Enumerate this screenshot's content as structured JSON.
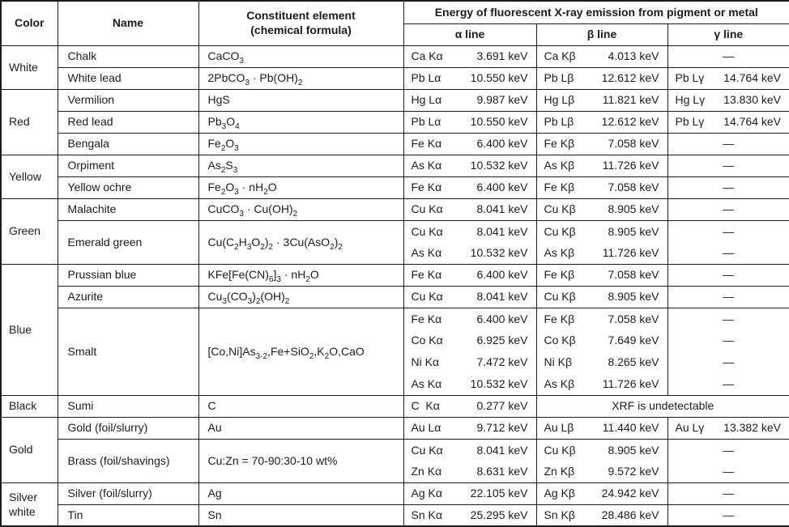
{
  "colors": {
    "ink": "#1c1c1c",
    "background": "#ffffff"
  },
  "dash": "—",
  "xrf_note": "XRF is undetectable",
  "headers": {
    "color": "Color",
    "name": "Name",
    "constituent_line1": "Constituent element",
    "constituent_line2": "(chemical formula)",
    "energy": "Energy of fluorescent X-ray emission from pigment or metal",
    "alpha": "α line",
    "beta": "β line",
    "gamma": "γ line"
  },
  "groups": [
    {
      "color": "White",
      "pigments": [
        {
          "name": "Chalk",
          "formula": "CaCO_3_",
          "lines": [
            {
              "a": {
                "l": "Ca Kα",
                "v": "3.691 keV"
              },
              "b": {
                "l": "Ca Kβ",
                "v": "4.013 keV"
              },
              "g": null
            }
          ]
        },
        {
          "name": "White lead",
          "formula": "2PbCO_3_ · Pb(OH)_2_",
          "lines": [
            {
              "a": {
                "l": "Pb Lα",
                "v": "10.550 keV"
              },
              "b": {
                "l": "Pb Lβ",
                "v": "12.612 keV"
              },
              "g": {
                "l": "Pb Lγ",
                "v": "14.764 keV"
              }
            }
          ]
        }
      ]
    },
    {
      "color": "Red",
      "pigments": [
        {
          "name": "Vermilion",
          "formula": "HgS",
          "lines": [
            {
              "a": {
                "l": "Hg Lα",
                "v": "9.987 keV"
              },
              "b": {
                "l": "Hg Lβ",
                "v": "11.821 keV"
              },
              "g": {
                "l": "Hg Lγ",
                "v": "13.830 keV"
              }
            }
          ]
        },
        {
          "name": "Red lead",
          "formula": "Pb_3_O_4_",
          "lines": [
            {
              "a": {
                "l": "Pb Lα",
                "v": "10.550 keV"
              },
              "b": {
                "l": "Pb Lβ",
                "v": "12.612 keV"
              },
              "g": {
                "l": "Pb Lγ",
                "v": "14.764 keV"
              }
            }
          ]
        },
        {
          "name": "Bengala",
          "formula": "Fe_2_O_3_",
          "lines": [
            {
              "a": {
                "l": "Fe Kα",
                "v": "6.400 keV"
              },
              "b": {
                "l": "Fe Kβ",
                "v": "7.058 keV"
              },
              "g": null
            }
          ]
        }
      ]
    },
    {
      "color": "Yellow",
      "pigments": [
        {
          "name": "Orpiment",
          "formula": "As_2_S_3_",
          "lines": [
            {
              "a": {
                "l": "As Kα",
                "v": "10.532 keV"
              },
              "b": {
                "l": "As Kβ",
                "v": "11.726 keV"
              },
              "g": null
            }
          ]
        },
        {
          "name": "Yellow ochre",
          "formula": "Fe_2_O_3_ · nH_2_O",
          "lines": [
            {
              "a": {
                "l": "Fe Kα",
                "v": "6.400 keV"
              },
              "b": {
                "l": "Fe Kβ",
                "v": "7.058 keV"
              },
              "g": null
            }
          ]
        }
      ]
    },
    {
      "color": "Green",
      "pigments": [
        {
          "name": "Malachite",
          "formula": "CuCO_3_ · Cu(OH)_2_",
          "lines": [
            {
              "a": {
                "l": "Cu Kα",
                "v": "8.041 keV"
              },
              "b": {
                "l": "Cu Kβ",
                "v": "8.905 keV"
              },
              "g": null
            }
          ]
        },
        {
          "name": "Emerald green",
          "formula": "Cu(C_2_H_3_O_2_)_2_ · 3Cu(AsO_2_)_2_",
          "lines": [
            {
              "a": {
                "l": "Cu Kα",
                "v": "8.041 keV"
              },
              "b": {
                "l": "Cu Kβ",
                "v": "8.905 keV"
              },
              "g": null
            },
            {
              "a": {
                "l": "As Kα",
                "v": "10.532 keV"
              },
              "b": {
                "l": "As Kβ",
                "v": "11.726 keV"
              },
              "g": null
            }
          ]
        }
      ]
    },
    {
      "color": "Blue",
      "pigments": [
        {
          "name": "Prussian blue",
          "formula": "KFe[Fe(CN)_6_]_3_ · nH_2_O",
          "lines": [
            {
              "a": {
                "l": "Fe Kα",
                "v": "6.400 keV"
              },
              "b": {
                "l": "Fe Kβ",
                "v": "7.058 keV"
              },
              "g": null
            }
          ]
        },
        {
          "name": "Azurite",
          "formula": "Cu_3_(CO_3_)_2_(OH)_2_",
          "lines": [
            {
              "a": {
                "l": "Cu Kα",
                "v": "8.041 keV"
              },
              "b": {
                "l": "Cu Kβ",
                "v": "8.905 keV"
              },
              "g": null
            }
          ]
        },
        {
          "name": "Smalt",
          "formula": "[Co,Ni]As_3-2_,Fe+SiO_2_,K_2_O,CaO",
          "lines": [
            {
              "a": {
                "l": "Fe Kα",
                "v": "6.400 keV"
              },
              "b": {
                "l": "Fe Kβ",
                "v": "7.058 keV"
              },
              "g": null
            },
            {
              "a": {
                "l": "Co Kα",
                "v": "6.925 keV"
              },
              "b": {
                "l": "Co Kβ",
                "v": "7.649 keV"
              },
              "g": null
            },
            {
              "a": {
                "l": "Ni Kα",
                "v": "7.472 keV"
              },
              "b": {
                "l": "Ni Kβ",
                "v": "8.265 keV"
              },
              "g": null
            },
            {
              "a": {
                "l": "As Kα",
                "v": "10.532 keV"
              },
              "b": {
                "l": "As Kβ",
                "v": "11.726 keV"
              },
              "g": null
            }
          ]
        }
      ]
    },
    {
      "color": "Black",
      "pigments": [
        {
          "name": "Sumi",
          "formula": "C",
          "lines": [
            {
              "a": {
                "l": "C  Kα",
                "v": "0.277 keV"
              },
              "b": null,
              "g": null
            }
          ]
        }
      ]
    },
    {
      "color": "Gold",
      "pigments": [
        {
          "name": "Gold (foil/slurry)",
          "formula": "Au",
          "lines": [
            {
              "a": {
                "l": "Au Lα",
                "v": "9.712 keV"
              },
              "b": {
                "l": "Au Lβ",
                "v": "11.440 keV"
              },
              "g": {
                "l": "Au Lγ",
                "v": "13.382 keV"
              }
            }
          ]
        },
        {
          "name": "Brass (foil/shavings)",
          "formula": "Cu:Zn = 70-90:30-10 wt%",
          "lines": [
            {
              "a": {
                "l": "Cu Kα",
                "v": "8.041 keV"
              },
              "b": {
                "l": "Cu Kβ",
                "v": "8.905 keV"
              },
              "g": null
            },
            {
              "a": {
                "l": "Zn Kα",
                "v": "8.631 keV"
              },
              "b": {
                "l": "Zn Kβ",
                "v": "9.572 keV"
              },
              "g": null
            }
          ]
        }
      ]
    },
    {
      "color": "Silver white",
      "pigments": [
        {
          "name": "Silver (foil/slurry)",
          "formula": "Ag",
          "lines": [
            {
              "a": {
                "l": "Ag Kα",
                "v": "22.105 keV"
              },
              "b": {
                "l": "Ag Kβ",
                "v": "24.942 keV"
              },
              "g": null
            }
          ]
        },
        {
          "name": "Tin",
          "formula": "Sn",
          "lines": [
            {
              "a": {
                "l": "Sn Kα",
                "v": "25.295 keV"
              },
              "b": {
                "l": "Sn Kβ",
                "v": "28.486 keV"
              },
              "g": null
            }
          ]
        }
      ]
    }
  ]
}
